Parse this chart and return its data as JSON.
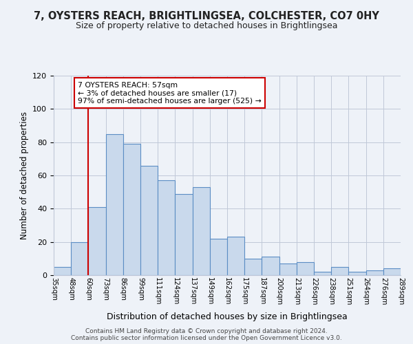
{
  "title1": "7, OYSTERS REACH, BRIGHTLINGSEA, COLCHESTER, CO7 0HY",
  "title2": "Size of property relative to detached houses in Brightlingsea",
  "xlabel": "Distribution of detached houses by size in Brightlingsea",
  "ylabel": "Number of detached properties",
  "tick_labels": [
    "35sqm",
    "48sqm",
    "60sqm",
    "73sqm",
    "86sqm",
    "99sqm",
    "111sqm",
    "124sqm",
    "137sqm",
    "149sqm",
    "162sqm",
    "175sqm",
    "187sqm",
    "200sqm",
    "213sqm",
    "226sqm",
    "238sqm",
    "251sqm",
    "264sqm",
    "276sqm",
    "289sqm"
  ],
  "values": [
    5,
    20,
    41,
    85,
    79,
    66,
    57,
    49,
    53,
    22,
    23,
    10,
    11,
    7,
    8,
    2,
    5,
    2,
    3,
    4
  ],
  "bar_color": "#c9d9ec",
  "bar_edge_color": "#5b8dc4",
  "red_line_x": 1.5,
  "ylim": [
    0,
    120
  ],
  "yticks": [
    0,
    20,
    40,
    60,
    80,
    100,
    120
  ],
  "annotation_text": "7 OYSTERS REACH: 57sqm\n← 3% of detached houses are smaller (17)\n97% of semi-detached houses are larger (525) →",
  "annotation_box_color": "#ffffff",
  "annotation_box_edge": "#cc0000",
  "red_line_color": "#cc0000",
  "footer1": "Contains HM Land Registry data © Crown copyright and database right 2024.",
  "footer2": "Contains public sector information licensed under the Open Government Licence v3.0.",
  "background_color": "#eef2f8",
  "plot_bg_color": "#eef2f8"
}
